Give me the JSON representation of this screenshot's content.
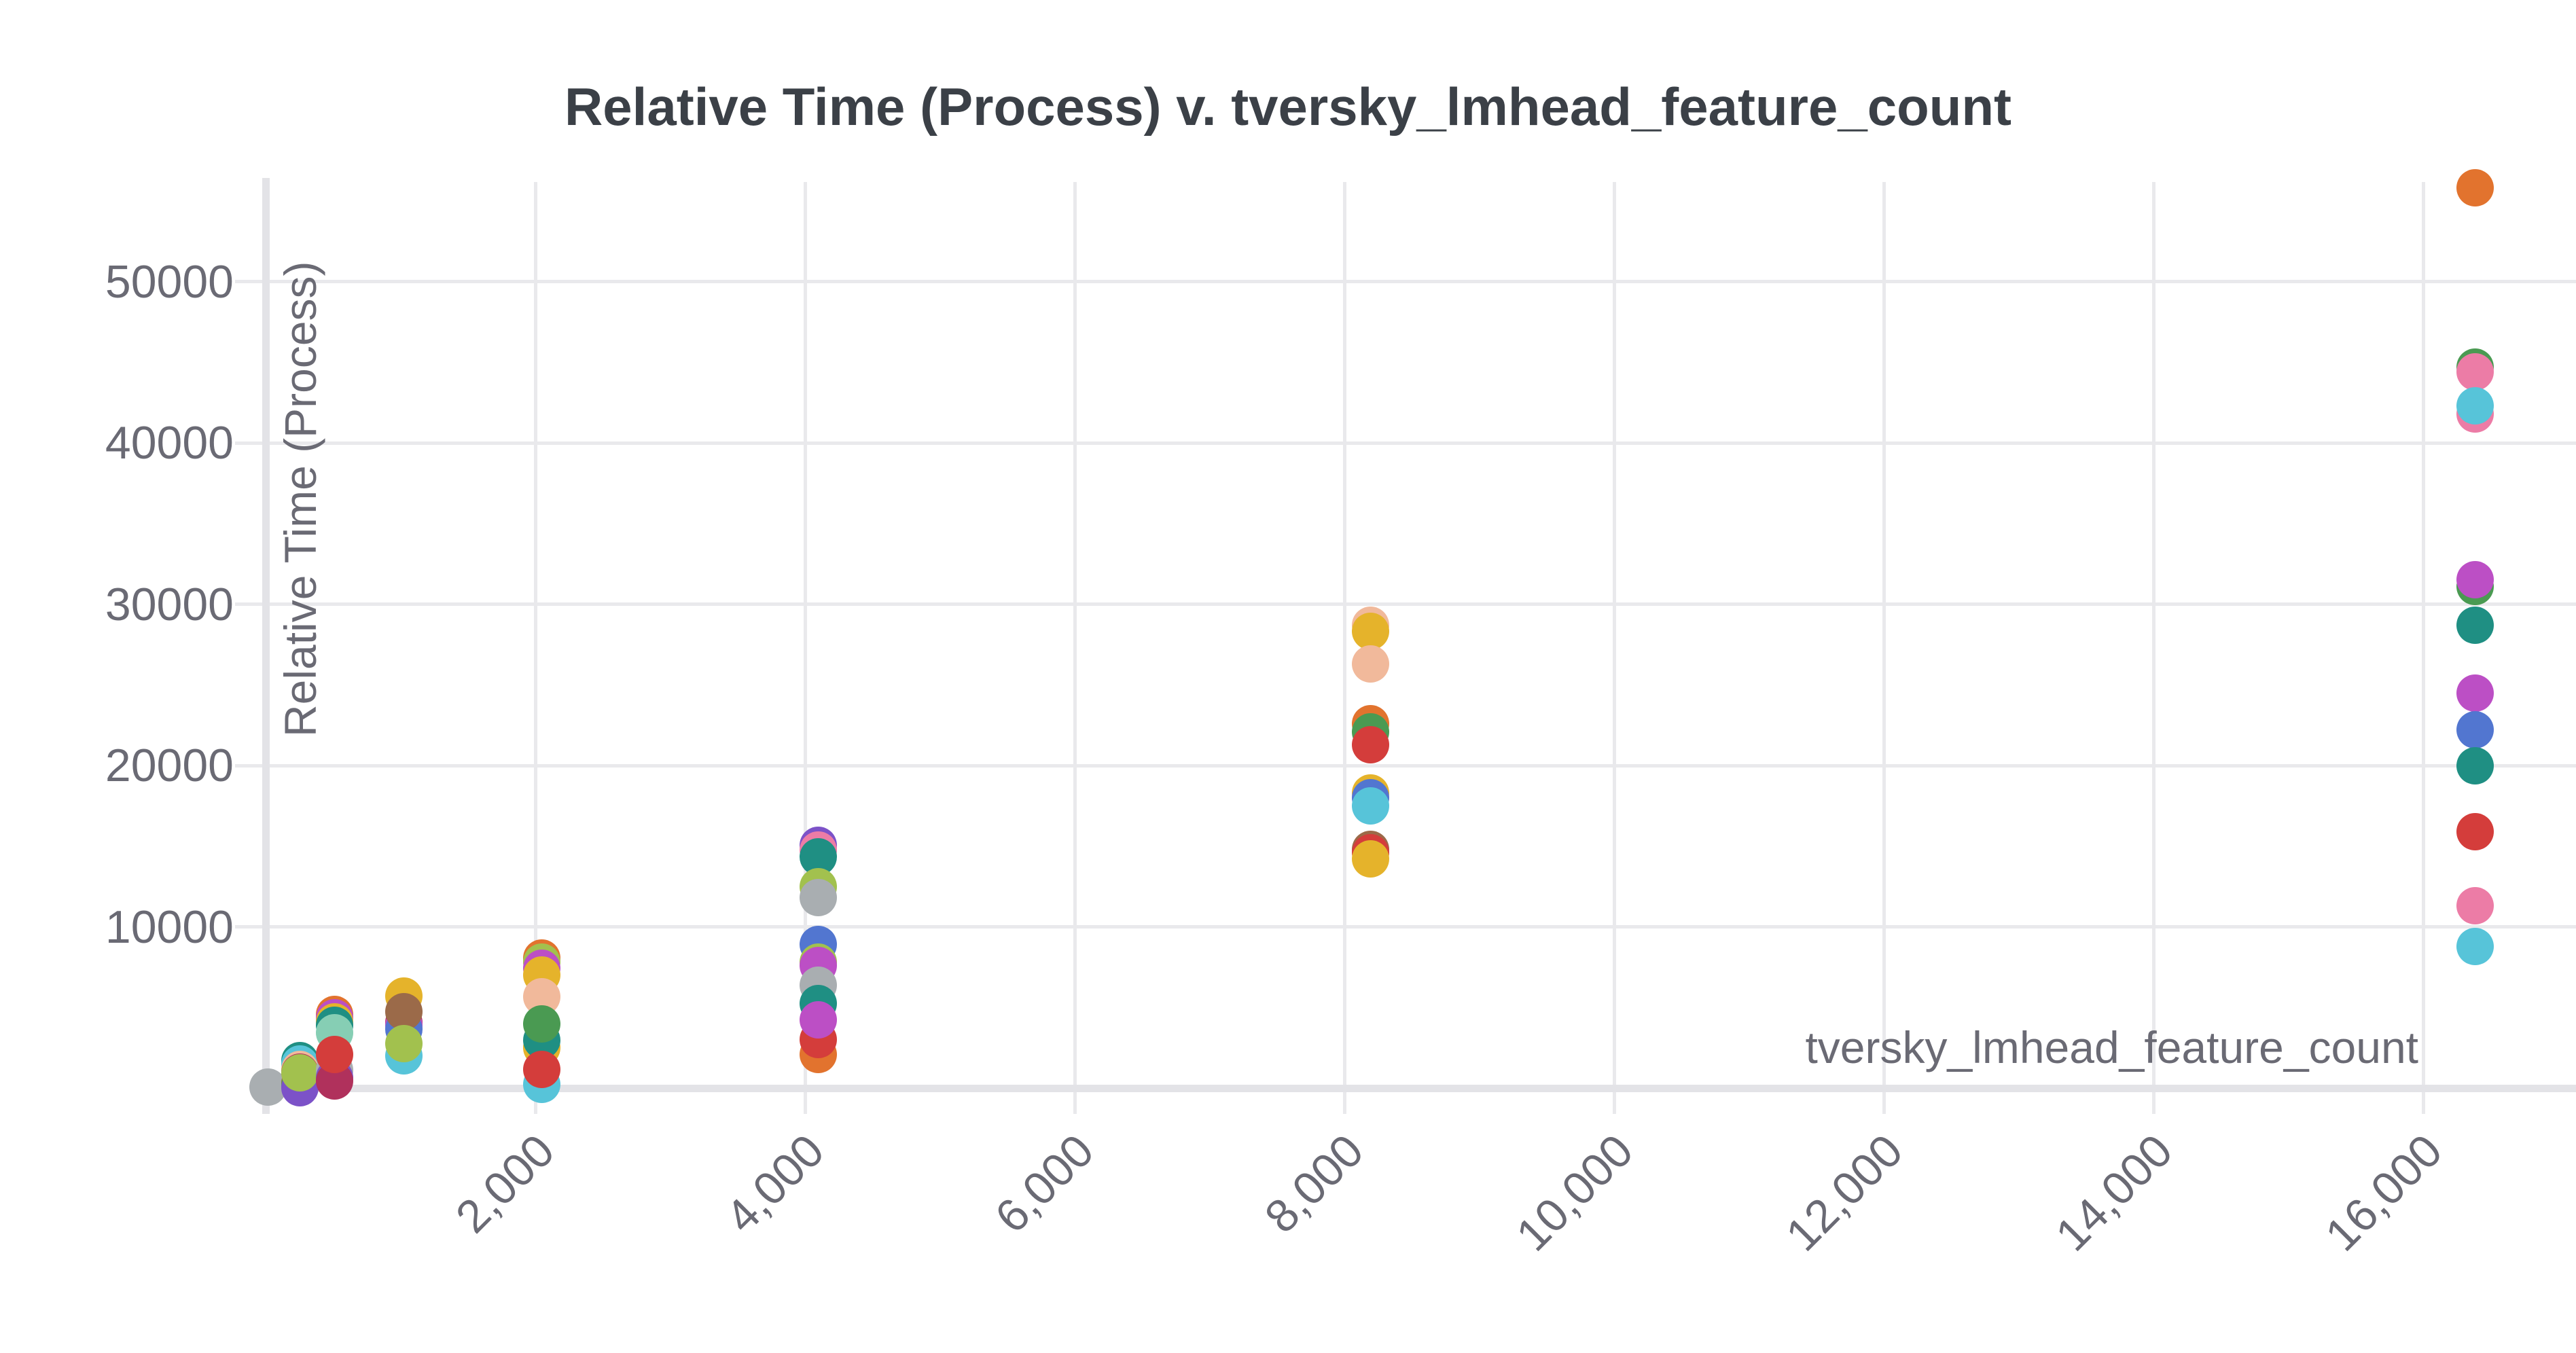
{
  "title": "Relative Time (Process) v. tversky_lmhead_feature_count",
  "colors": {
    "background": "#ffffff",
    "title_text": "#3b4047",
    "tick_text": "#6a6a74",
    "gridline": "#e9e9ec",
    "axis_line": "#e3e3e7"
  },
  "y_axis": {
    "label": "Relative Time (Process)",
    "ticks": [
      {
        "value": 10000,
        "label": "10000"
      },
      {
        "value": 20000,
        "label": "20000"
      },
      {
        "value": 30000,
        "label": "30000"
      },
      {
        "value": 40000,
        "label": "40000"
      },
      {
        "value": 50000,
        "label": "50000"
      }
    ]
  },
  "x_axis": {
    "label": "tversky_lmhead_feature_count",
    "ticks": [
      {
        "value": 2000,
        "label": "2,000"
      },
      {
        "value": 4000,
        "label": "4,000"
      },
      {
        "value": 6000,
        "label": "6,000"
      },
      {
        "value": 8000,
        "label": "8,000"
      },
      {
        "value": 10000,
        "label": "10,000"
      },
      {
        "value": 12000,
        "label": "12,000"
      },
      {
        "value": 14000,
        "label": "14,000"
      },
      {
        "value": 16000,
        "label": "16,000"
      }
    ]
  },
  "chart_data": {
    "type": "scatter",
    "title": "Relative Time (Process) v. tversky_lmhead_feature_count",
    "xlabel": "tversky_lmhead_feature_count",
    "ylabel": "Relative Time (Process)",
    "xlim": [
      0,
      17150
    ],
    "ylim": [
      0,
      56100
    ],
    "x_ticks": [
      2000,
      4000,
      6000,
      8000,
      10000,
      12000,
      14000,
      16000
    ],
    "y_ticks": [
      10000,
      20000,
      30000,
      40000,
      50000
    ],
    "grid": true,
    "legend": false,
    "x_values_are_powers_of_two": [
      0,
      256,
      512,
      1024,
      2048,
      4096,
      8192,
      16384
    ],
    "points": [
      {
        "x": 20,
        "y": 50,
        "color": "#a9aeb1"
      },
      {
        "x": 256,
        "y": 1700,
        "color": "#1f8f83"
      },
      {
        "x": 256,
        "y": 1500,
        "color": "#57c4d9"
      },
      {
        "x": 256,
        "y": 1150,
        "color": "#f1b99b"
      },
      {
        "x": 256,
        "y": 1000,
        "color": "#b0315c"
      },
      {
        "x": 256,
        "y": 300,
        "color": "#9b6a49"
      },
      {
        "x": 256,
        "y": 150,
        "color": "#4a9a52"
      },
      {
        "x": 256,
        "y": 30,
        "color": "#7c52c8"
      },
      {
        "x": 256,
        "y": 950,
        "color": "#a2c14e"
      },
      {
        "x": 512,
        "y": 4550,
        "color": "#e2732e"
      },
      {
        "x": 512,
        "y": 4350,
        "color": "#bc4fc5"
      },
      {
        "x": 512,
        "y": 4100,
        "color": "#e5b32b"
      },
      {
        "x": 512,
        "y": 3900,
        "color": "#1f8f83"
      },
      {
        "x": 512,
        "y": 3450,
        "color": "#86ceb4"
      },
      {
        "x": 512,
        "y": 1100,
        "color": "#a9aeb1"
      },
      {
        "x": 512,
        "y": 650,
        "color": "#7c52c8"
      },
      {
        "x": 512,
        "y": 450,
        "color": "#b0315c"
      },
      {
        "x": 512,
        "y": 2100,
        "color": "#d43d3b"
      },
      {
        "x": 1024,
        "y": 5700,
        "color": "#e5b32b"
      },
      {
        "x": 1024,
        "y": 4050,
        "color": "#b0315c"
      },
      {
        "x": 1024,
        "y": 3900,
        "color": "#bc4fc5"
      },
      {
        "x": 1024,
        "y": 3650,
        "color": "#5276d0"
      },
      {
        "x": 1024,
        "y": 4750,
        "color": "#9b6a49"
      },
      {
        "x": 1024,
        "y": 2000,
        "color": "#57c4d9"
      },
      {
        "x": 1024,
        "y": 2750,
        "color": "#a2c14e"
      },
      {
        "x": 2048,
        "y": 8050,
        "color": "#e2732e"
      },
      {
        "x": 2048,
        "y": 7800,
        "color": "#a2c14e"
      },
      {
        "x": 2048,
        "y": 7450,
        "color": "#bc4fc5"
      },
      {
        "x": 2048,
        "y": 7000,
        "color": "#e5b32b"
      },
      {
        "x": 2048,
        "y": 5650,
        "color": "#f1b99b"
      },
      {
        "x": 2048,
        "y": 2500,
        "color": "#e5b32b"
      },
      {
        "x": 2048,
        "y": 2950,
        "color": "#1f8f83"
      },
      {
        "x": 2048,
        "y": 4000,
        "color": "#4a9a52"
      },
      {
        "x": 2048,
        "y": 250,
        "color": "#57c4d9"
      },
      {
        "x": 2048,
        "y": 1150,
        "color": "#d43d3b"
      },
      {
        "x": 4096,
        "y": 15050,
        "color": "#7c52c8"
      },
      {
        "x": 4096,
        "y": 14750,
        "color": "#ec7ca6"
      },
      {
        "x": 4096,
        "y": 14350,
        "color": "#1f8f83"
      },
      {
        "x": 4096,
        "y": 12500,
        "color": "#a2c14e"
      },
      {
        "x": 4096,
        "y": 11800,
        "color": "#a9aeb1"
      },
      {
        "x": 4096,
        "y": 8900,
        "color": "#5276d0"
      },
      {
        "x": 4096,
        "y": 7800,
        "color": "#a2c14e"
      },
      {
        "x": 4096,
        "y": 7600,
        "color": "#bc4fc5"
      },
      {
        "x": 4096,
        "y": 6400,
        "color": "#a9aeb1"
      },
      {
        "x": 4096,
        "y": 5250,
        "color": "#1f8f83"
      },
      {
        "x": 4096,
        "y": 2100,
        "color": "#e2732e"
      },
      {
        "x": 4096,
        "y": 3000,
        "color": "#d43d3b"
      },
      {
        "x": 4096,
        "y": 4250,
        "color": "#bc4fc5"
      },
      {
        "x": 8192,
        "y": 28700,
        "color": "#f1b99b"
      },
      {
        "x": 8192,
        "y": 28300,
        "color": "#e5b32b"
      },
      {
        "x": 8192,
        "y": 26300,
        "color": "#f1b99b"
      },
      {
        "x": 8192,
        "y": 22600,
        "color": "#e2732e"
      },
      {
        "x": 8192,
        "y": 22100,
        "color": "#4a9a52"
      },
      {
        "x": 8192,
        "y": 21300,
        "color": "#d43d3b"
      },
      {
        "x": 8192,
        "y": 18300,
        "color": "#e5b32b"
      },
      {
        "x": 8192,
        "y": 18000,
        "color": "#5276d0"
      },
      {
        "x": 8192,
        "y": 17500,
        "color": "#57c4d9"
      },
      {
        "x": 8192,
        "y": 14800,
        "color": "#9b6a49"
      },
      {
        "x": 8192,
        "y": 14600,
        "color": "#d43d3b"
      },
      {
        "x": 8192,
        "y": 14200,
        "color": "#e5b32b"
      },
      {
        "x": 16384,
        "y": 55800,
        "color": "#e2732e"
      },
      {
        "x": 16384,
        "y": 44700,
        "color": "#4a9a52"
      },
      {
        "x": 16384,
        "y": 44400,
        "color": "#ec7ca6"
      },
      {
        "x": 16384,
        "y": 41800,
        "color": "#ec7ca6"
      },
      {
        "x": 16384,
        "y": 42300,
        "color": "#57c4d9"
      },
      {
        "x": 16384,
        "y": 31100,
        "color": "#4a9a52"
      },
      {
        "x": 16384,
        "y": 31500,
        "color": "#bc4fc5"
      },
      {
        "x": 16384,
        "y": 28700,
        "color": "#1f8f83"
      },
      {
        "x": 16384,
        "y": 24500,
        "color": "#bc4fc5"
      },
      {
        "x": 16384,
        "y": 22200,
        "color": "#5276d0"
      },
      {
        "x": 16384,
        "y": 20000,
        "color": "#1f8f83"
      },
      {
        "x": 16384,
        "y": 15900,
        "color": "#d43d3b"
      },
      {
        "x": 16384,
        "y": 11300,
        "color": "#ec7ca6"
      },
      {
        "x": 16384,
        "y": 8800,
        "color": "#57c4d9"
      }
    ]
  }
}
